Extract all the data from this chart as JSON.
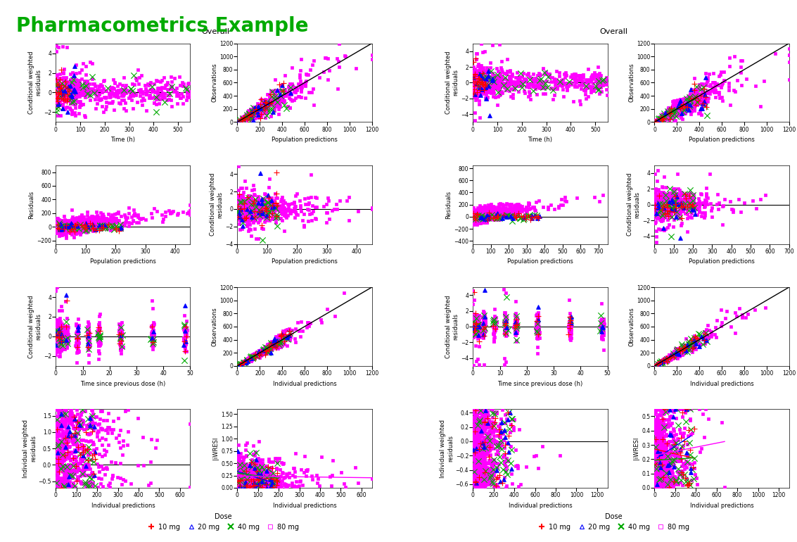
{
  "title": "Pharmacometrics Example",
  "title_color": "#00AA00",
  "title_fontsize": 20,
  "overall_label": "Overall",
  "colors": {
    "10mg": "#FF0000",
    "20mg": "#0000FF",
    "40mg": "#00AA00",
    "80mg": "#FF00FF"
  },
  "markers": {
    "10mg": "+",
    "20mg": "^",
    "40mg": "x",
    "80mg": "s"
  },
  "marker_sizes": {
    "10mg": 6,
    "20mg": 4,
    "40mg": 6,
    "80mg": 3
  },
  "marker_facecolors": {
    "10mg": "#FF0000",
    "20mg": "none",
    "40mg": "#00AA00",
    "80mg": "none"
  },
  "left_panel": {
    "row0": {
      "left": {
        "xlabel": "Time (h)",
        "ylabel": "Conditional weighted\nresiduals",
        "xlim": [
          0,
          550
        ],
        "ylim": [
          -3,
          5
        ]
      },
      "right": {
        "xlabel": "Population predictions",
        "ylabel": "Observations",
        "xlim": [
          0,
          1200
        ],
        "ylim": [
          0,
          1200
        ]
      }
    },
    "row1": {
      "left": {
        "xlabel": "Population predictions",
        "ylabel": "Residuals",
        "xlim": [
          0,
          450
        ],
        "ylim": [
          -250,
          900
        ]
      },
      "right": {
        "xlabel": "Population predictions",
        "ylabel": "Conditional weighted\nresiduals",
        "xlim": [
          0,
          450
        ],
        "ylim": [
          -4,
          5
        ]
      }
    },
    "row2": {
      "left": {
        "xlabel": "Time since previous dose (h)",
        "ylabel": "Conditional weighted\nresiduals",
        "xlim": [
          0,
          50
        ],
        "ylim": [
          -3,
          5
        ]
      },
      "right": {
        "xlabel": "Individual predictions",
        "ylabel": "Observations",
        "xlim": [
          0,
          1200
        ],
        "ylim": [
          0,
          1200
        ]
      }
    },
    "row3": {
      "left": {
        "xlabel": "Individual predictions",
        "ylabel": "Individual weighted\nresiduals",
        "xlim": [
          0,
          650
        ],
        "ylim": [
          -0.7,
          1.7
        ]
      },
      "right": {
        "xlabel": "Individual predictions",
        "ylabel": "|iWRESI",
        "xlim": [
          0,
          650
        ],
        "ylim": [
          0,
          1.6
        ]
      }
    }
  },
  "right_panel": {
    "row0": {
      "left": {
        "xlabel": "Time (h)",
        "ylabel": "Conditional weighted\nresiduals",
        "xlim": [
          0,
          550
        ],
        "ylim": [
          -5,
          5
        ]
      },
      "right": {
        "xlabel": "Population predictions",
        "ylabel": "Observations",
        "xlim": [
          0,
          1200
        ],
        "ylim": [
          0,
          1200
        ]
      }
    },
    "row1": {
      "left": {
        "xlabel": "Population predictions",
        "ylabel": "Residuals",
        "xlim": [
          0,
          750
        ],
        "ylim": [
          -450,
          850
        ]
      },
      "right": {
        "xlabel": "Population predictions",
        "ylabel": "Conditional weighted\nresiduals",
        "xlim": [
          0,
          700
        ],
        "ylim": [
          -5,
          5
        ]
      }
    },
    "row2": {
      "left": {
        "xlabel": "Time since previous dose (h)",
        "ylabel": "Conditional weighted\nresiduals",
        "xlim": [
          0,
          50
        ],
        "ylim": [
          -5,
          5
        ]
      },
      "right": {
        "xlabel": "Individual predictions",
        "ylabel": "Observations",
        "xlim": [
          0,
          1200
        ],
        "ylim": [
          0,
          1200
        ]
      }
    },
    "row3": {
      "left": {
        "xlabel": "Individual predictions",
        "ylabel": "Individual weighted\nresiduals",
        "xlim": [
          0,
          1300
        ],
        "ylim": [
          -0.65,
          0.45
        ]
      },
      "right": {
        "xlabel": "Individual predictions",
        "ylabel": "|iWRESI",
        "xlim": [
          0,
          1300
        ],
        "ylim": [
          0,
          0.55
        ]
      }
    }
  },
  "background_color": "#FFFFFF",
  "axes_background": "#FFFFFF"
}
